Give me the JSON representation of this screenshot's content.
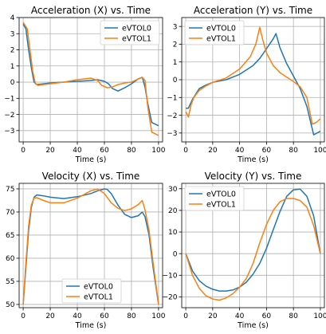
{
  "figure": {
    "colors": {
      "eVTOL0": "#1f77b4",
      "eVTOL1": "#ff7f0e"
    }
  },
  "chart_data": [
    {
      "type": "line",
      "title": "Acceleration (X) vs. Time",
      "xlabel": "Time (s)",
      "ylabel": "",
      "xlim": [
        -3,
        103
      ],
      "ylim": [
        -3.7,
        4.0
      ],
      "xticks": [
        "0",
        "20",
        "40",
        "60",
        "80",
        "100"
      ],
      "xtick_values": [
        0,
        20,
        40,
        60,
        80,
        100
      ],
      "yticks": [
        "−3",
        "−2",
        "−1",
        "0",
        "1",
        "2",
        "3",
        "4"
      ],
      "ytick_values": [
        -3,
        -2,
        -1,
        0,
        1,
        2,
        3,
        4
      ],
      "grid": true,
      "legend": "top-right",
      "series": [
        {
          "name": "eVTOL0",
          "color": "#1f77b4",
          "x": [
            0,
            2,
            4,
            6,
            8,
            10,
            15,
            20,
            30,
            40,
            50,
            55,
            60,
            63,
            66,
            70,
            75,
            80,
            85,
            88,
            90,
            92,
            95,
            100
          ],
          "y": [
            3.6,
            3.3,
            2.0,
            0.9,
            0.0,
            -0.15,
            -0.1,
            -0.05,
            0.0,
            0.05,
            0.1,
            0.15,
            0.05,
            -0.1,
            -0.4,
            -0.55,
            -0.35,
            -0.1,
            0.2,
            0.3,
            -0.3,
            -1.3,
            -2.5,
            -2.7
          ]
        },
        {
          "name": "eVTOL1",
          "color": "#ff7f0e",
          "x": [
            0,
            3,
            5,
            7,
            9,
            11,
            15,
            20,
            30,
            40,
            45,
            50,
            55,
            58,
            62,
            66,
            70,
            75,
            80,
            85,
            88,
            90,
            92,
            95,
            100
          ],
          "y": [
            3.7,
            3.3,
            2.0,
            0.7,
            -0.1,
            -0.2,
            -0.15,
            -0.1,
            0.0,
            0.15,
            0.2,
            0.25,
            0.1,
            -0.2,
            -0.35,
            -0.3,
            -0.15,
            -0.05,
            0.0,
            0.2,
            0.3,
            0.1,
            -1.5,
            -3.1,
            -3.3
          ]
        }
      ]
    },
    {
      "type": "line",
      "title": "Acceleration (Y) vs. Time",
      "xlabel": "Time (s)",
      "ylabel": "",
      "xlim": [
        -3,
        103
      ],
      "ylim": [
        -3.5,
        3.5
      ],
      "xticks": [
        "0",
        "20",
        "40",
        "60",
        "80",
        "100"
      ],
      "xtick_values": [
        0,
        20,
        40,
        60,
        80,
        100
      ],
      "yticks": [
        "−3",
        "−2",
        "−1",
        "0",
        "1",
        "2",
        "3"
      ],
      "ytick_values": [
        -3,
        -2,
        -1,
        0,
        1,
        2,
        3
      ],
      "grid": true,
      "legend": "top-left",
      "series": [
        {
          "name": "eVTOL0",
          "color": "#1f77b4",
          "x": [
            0,
            2,
            5,
            10,
            15,
            20,
            30,
            40,
            50,
            55,
            60,
            65,
            67,
            70,
            75,
            80,
            85,
            90,
            95,
            100
          ],
          "y": [
            -1.6,
            -1.6,
            -1.1,
            -0.5,
            -0.3,
            -0.15,
            0.0,
            0.3,
            0.8,
            1.2,
            1.75,
            2.3,
            2.6,
            1.8,
            0.9,
            0.2,
            -0.5,
            -1.5,
            -3.1,
            -2.9
          ]
        },
        {
          "name": "eVTOL1",
          "color": "#ff7f0e",
          "x": [
            0,
            2,
            4,
            6,
            10,
            15,
            20,
            30,
            40,
            48,
            52,
            55,
            57,
            60,
            65,
            70,
            75,
            80,
            85,
            90,
            94,
            97,
            100
          ],
          "y": [
            -1.8,
            -2.1,
            -1.4,
            -1.0,
            -0.6,
            -0.35,
            -0.15,
            0.1,
            0.6,
            1.3,
            2.0,
            2.95,
            2.3,
            1.5,
            0.8,
            0.4,
            0.15,
            -0.1,
            -0.4,
            -1.0,
            -2.5,
            -2.4,
            -2.2
          ]
        }
      ]
    },
    {
      "type": "line",
      "title": "Velocity (X) vs. Time",
      "xlabel": "Time (s)",
      "ylabel": "",
      "xlim": [
        -3,
        103
      ],
      "ylim": [
        49.3,
        76.2
      ],
      "xticks": [
        "0",
        "20",
        "40",
        "60",
        "80",
        "100"
      ],
      "xtick_values": [
        0,
        20,
        40,
        60,
        80,
        100
      ],
      "yticks": [
        "50",
        "55",
        "60",
        "65",
        "70",
        "75"
      ],
      "ytick_values": [
        50,
        55,
        60,
        65,
        70,
        75
      ],
      "grid": true,
      "legend": "lower-center",
      "series": [
        {
          "name": "eVTOL0",
          "color": "#1f77b4",
          "x": [
            0,
            2,
            4,
            6,
            8,
            10,
            15,
            20,
            30,
            40,
            50,
            55,
            60,
            62,
            65,
            70,
            75,
            80,
            85,
            88,
            90,
            93,
            96,
            100
          ],
          "y": [
            50,
            58,
            66,
            71,
            73.2,
            73.7,
            73.5,
            73.2,
            72.9,
            73.3,
            74.0,
            74.6,
            75.0,
            74.9,
            74.0,
            71.5,
            69.5,
            68.8,
            69.2,
            70.0,
            69.0,
            65.0,
            58.0,
            50.0
          ]
        },
        {
          "name": "eVTOL1",
          "color": "#ff7f0e",
          "x": [
            0,
            2,
            4,
            6,
            8,
            10,
            15,
            20,
            30,
            40,
            50,
            55,
            60,
            65,
            70,
            75,
            80,
            85,
            88,
            90,
            93,
            96,
            100
          ],
          "y": [
            50,
            59,
            67,
            71.5,
            73.0,
            73.1,
            72.5,
            72.0,
            72.0,
            73.0,
            74.6,
            75.0,
            74.0,
            72.0,
            70.8,
            70.3,
            70.7,
            71.6,
            72.5,
            70.5,
            66.0,
            59.0,
            50.0
          ]
        }
      ]
    },
    {
      "type": "line",
      "title": "Velocity (Y) vs. Time",
      "xlabel": "Time (s)",
      "ylabel": "",
      "xlim": [
        -3,
        103
      ],
      "ylim": [
        -25,
        32.5
      ],
      "xticks": [
        "0",
        "20",
        "40",
        "60",
        "80",
        "100"
      ],
      "xtick_values": [
        0,
        20,
        40,
        60,
        80,
        100
      ],
      "yticks": [
        "−20",
        "−10",
        "0",
        "10",
        "20",
        "30"
      ],
      "ytick_values": [
        -20,
        -10,
        0,
        10,
        20,
        30
      ],
      "grid": true,
      "legend": "top-left",
      "series": [
        {
          "name": "eVTOL0",
          "color": "#1f77b4",
          "x": [
            0,
            5,
            10,
            15,
            20,
            25,
            30,
            35,
            40,
            45,
            50,
            55,
            60,
            65,
            70,
            75,
            80,
            85,
            90,
            95,
            100
          ],
          "y": [
            0,
            -8,
            -12.5,
            -15,
            -16.5,
            -17.3,
            -17.3,
            -16.8,
            -15.5,
            -13.2,
            -9.5,
            -4.5,
            2.5,
            11,
            19.5,
            26.5,
            29.5,
            29.8,
            26.5,
            17.5,
            0
          ]
        },
        {
          "name": "eVTOL1",
          "color": "#ff7f0e",
          "x": [
            0,
            5,
            10,
            15,
            20,
            25,
            30,
            35,
            40,
            45,
            50,
            55,
            60,
            65,
            70,
            75,
            80,
            85,
            90,
            95,
            100
          ],
          "y": [
            0,
            -10,
            -16,
            -19.5,
            -21,
            -21.5,
            -20.5,
            -18.5,
            -15.5,
            -11.5,
            -4.5,
            5,
            13.5,
            20,
            24,
            25.5,
            25.5,
            24.5,
            21.5,
            13,
            0
          ]
        }
      ]
    }
  ]
}
